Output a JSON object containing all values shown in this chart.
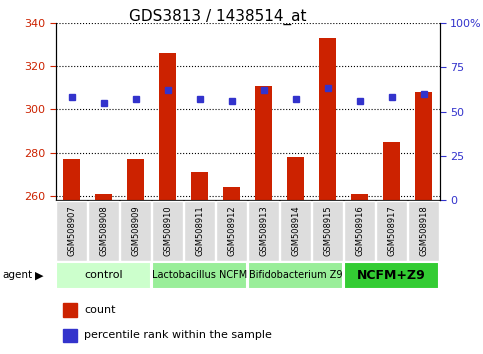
{
  "title": "GDS3813 / 1438514_at",
  "samples": [
    "GSM508907",
    "GSM508908",
    "GSM508909",
    "GSM508910",
    "GSM508911",
    "GSM508912",
    "GSM508913",
    "GSM508914",
    "GSM508915",
    "GSM508916",
    "GSM508917",
    "GSM508918"
  ],
  "counts": [
    277,
    261,
    277,
    326,
    271,
    264,
    311,
    278,
    333,
    261,
    285,
    308
  ],
  "percentiles": [
    58,
    55,
    57,
    62,
    57,
    56,
    62,
    57,
    63,
    56,
    58,
    60
  ],
  "ylim_left": [
    258,
    340
  ],
  "ylim_right": [
    0,
    100
  ],
  "yticks_left": [
    260,
    280,
    300,
    320,
    340
  ],
  "yticks_right": [
    0,
    25,
    50,
    75,
    100
  ],
  "bar_color": "#cc2200",
  "dot_color": "#3333cc",
  "bar_bottom": 258,
  "agent_groups": [
    {
      "label": "control",
      "start": 0,
      "end": 3,
      "color": "#ccffcc",
      "fontsize": 8,
      "fontweight": "normal"
    },
    {
      "label": "Lactobacillus NCFM",
      "start": 3,
      "end": 6,
      "color": "#99ee99",
      "fontsize": 7,
      "fontweight": "normal"
    },
    {
      "label": "Bifidobacterium Z9",
      "start": 6,
      "end": 9,
      "color": "#99ee99",
      "fontsize": 7,
      "fontweight": "normal"
    },
    {
      "label": "NCFM+Z9",
      "start": 9,
      "end": 12,
      "color": "#33cc33",
      "fontsize": 9,
      "fontweight": "bold"
    }
  ],
  "left_color": "#cc2200",
  "right_color": "#3333cc",
  "grid_color": "black",
  "sample_cell_color": "#dddddd",
  "title_fontsize": 11,
  "tick_fontsize": 8,
  "sample_fontsize": 6
}
